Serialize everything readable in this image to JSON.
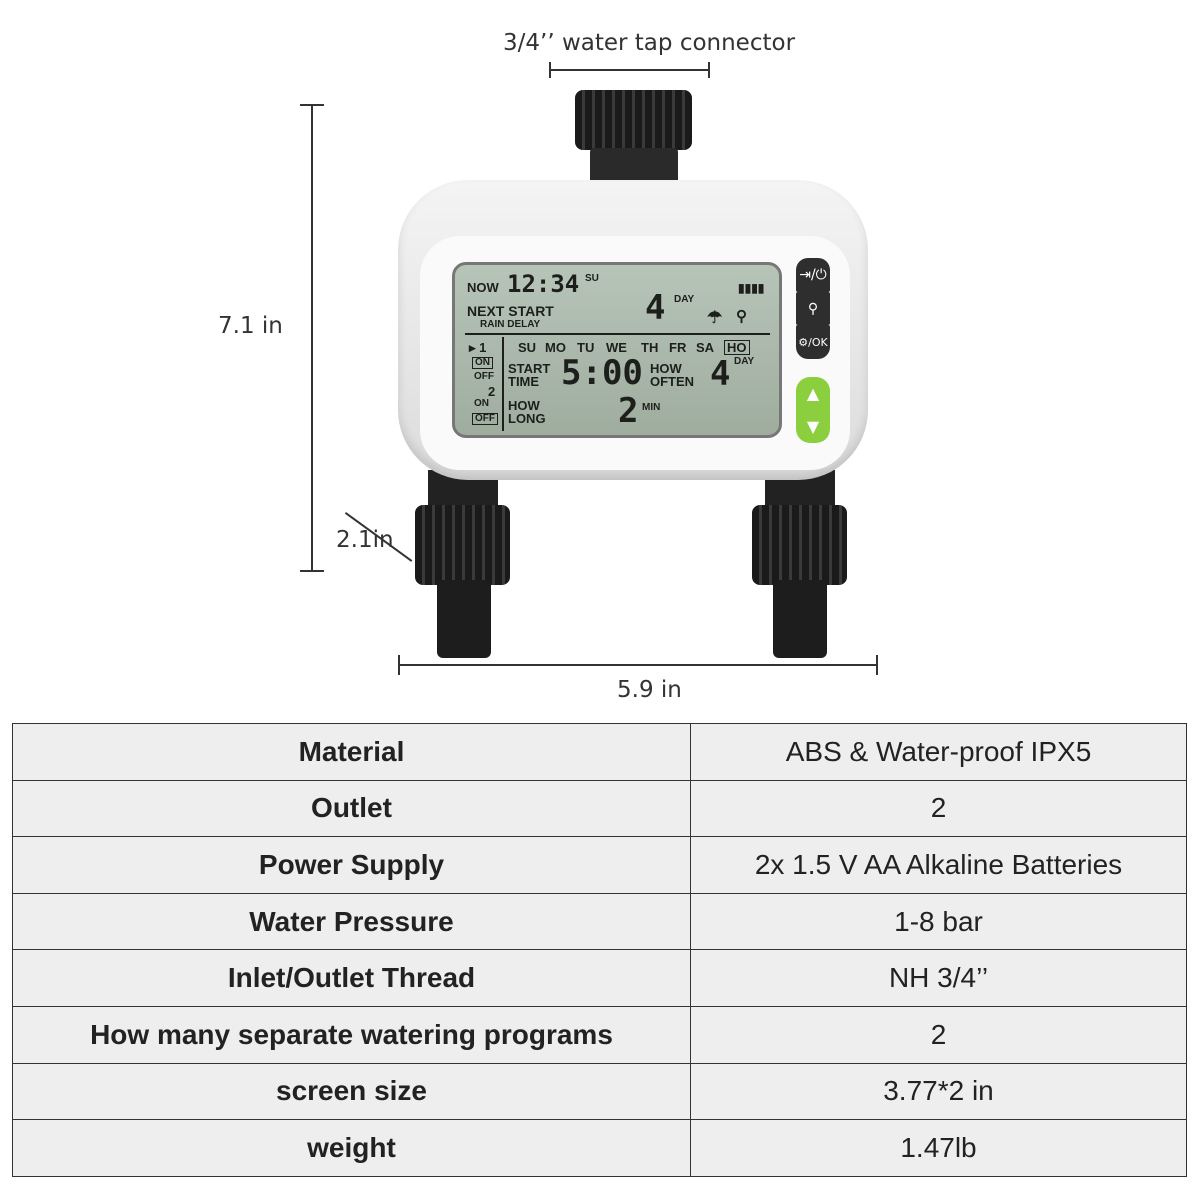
{
  "dimensions": {
    "connector": "3/4’’ water tap connector",
    "height": "7.1 in",
    "depth": "2.1in",
    "width": "5.9 in"
  },
  "lcd": {
    "now_label": "NOW",
    "time": "12:34",
    "day": "SU",
    "next_start": "NEXT START",
    "rain_delay": "RAIN DELAY",
    "next_days": "4",
    "day_unit": "DAY",
    "program1": "▸ 1",
    "on": "ON",
    "off": "OFF",
    "program2": "2",
    "weekdays": [
      "SU",
      "MO",
      "TU",
      "WE",
      "TH",
      "FR",
      "SA",
      "HO"
    ],
    "start_time_label": [
      "START",
      "TIME"
    ],
    "start_time": "5:00",
    "how_often_label": [
      "HOW",
      "OFTEN"
    ],
    "how_often": "4",
    "how_long_label": [
      "HOW",
      "LONG"
    ],
    "how_long": "2",
    "min_unit": "MIN"
  },
  "buttons": [
    "manual / power",
    "faucet",
    "settings / OK",
    "up",
    "down"
  ],
  "specs": [
    {
      "label": "Material",
      "value": "ABS & Water-proof IPX5"
    },
    {
      "label": "Outlet",
      "value": "2"
    },
    {
      "label": "Power Supply",
      "value": "2x 1.5 V AA Alkaline Batteries"
    },
    {
      "label": "Water Pressure",
      "value": "1-8 bar"
    },
    {
      "label": "Inlet/Outlet Thread",
      "value": "NH 3/4’’"
    },
    {
      "label": "How many separate watering programs",
      "value": "2"
    },
    {
      "label": "screen size",
      "value": "3.77*2 in"
    },
    {
      "label": "weight",
      "value": "1.47lb"
    }
  ]
}
